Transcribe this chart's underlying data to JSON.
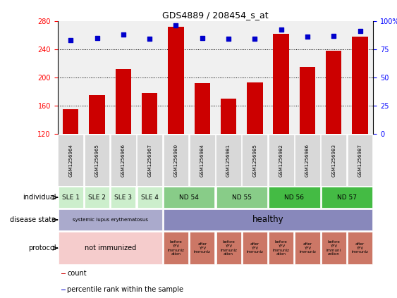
{
  "title": "GDS4889 / 208454_s_at",
  "samples": [
    "GSM1256964",
    "GSM1256965",
    "GSM1256966",
    "GSM1256967",
    "GSM1256980",
    "GSM1256984",
    "GSM1256981",
    "GSM1256985",
    "GSM1256982",
    "GSM1256986",
    "GSM1256983",
    "GSM1256987"
  ],
  "counts": [
    155,
    175,
    212,
    178,
    272,
    192,
    170,
    193,
    262,
    215,
    238,
    258
  ],
  "percentiles": [
    83,
    85,
    88,
    84,
    96,
    85,
    84,
    84,
    92,
    86,
    87,
    91
  ],
  "ylim_left": [
    120,
    280
  ],
  "ylim_right": [
    0,
    100
  ],
  "yticks_left": [
    120,
    160,
    200,
    240,
    280
  ],
  "yticks_right": [
    0,
    25,
    50,
    75,
    100
  ],
  "bar_color": "#cc0000",
  "dot_color": "#0000cc",
  "bg_color": "#f0f0f0",
  "ind_colors": [
    "#cceecc",
    "#cceecc",
    "#cceecc",
    "#cceecc",
    "#88cc88",
    "#88cc88",
    "#44bb44",
    "#44bb44"
  ],
  "ind_texts": [
    "SLE 1",
    "SLE 2",
    "SLE 3",
    "SLE 4",
    "ND 54",
    "ND 55",
    "ND 56",
    "ND 57"
  ],
  "ind_spans": [
    1,
    1,
    1,
    1,
    2,
    2,
    2,
    2
  ],
  "dis_cells": [
    {
      "col": 0,
      "span": 4,
      "color": "#aaaacc",
      "text": "systemic lupus erythematosus",
      "fs": 5.0
    },
    {
      "col": 4,
      "span": 8,
      "color": "#8888bb",
      "text": "healthy",
      "fs": 8.5
    }
  ],
  "pro_cells": [
    {
      "col": 0,
      "span": 4,
      "color": "#f5cccc",
      "text": "not immunized",
      "fs": 7.0
    },
    {
      "col": 4,
      "span": 1,
      "color": "#cc7766",
      "text": "before\nYFV\nimmuniz\nation",
      "fs": 4.0
    },
    {
      "col": 5,
      "span": 1,
      "color": "#cc7766",
      "text": "after\nYFV\nimmuniz",
      "fs": 4.0
    },
    {
      "col": 6,
      "span": 1,
      "color": "#cc7766",
      "text": "before\nYFV\nimmuniz\nation",
      "fs": 4.0
    },
    {
      "col": 7,
      "span": 1,
      "color": "#cc7766",
      "text": "after\nYFV\nimmuniz",
      "fs": 4.0
    },
    {
      "col": 8,
      "span": 1,
      "color": "#cc7766",
      "text": "before\nYFV\nimmuniz\nation",
      "fs": 4.0
    },
    {
      "col": 9,
      "span": 1,
      "color": "#cc7766",
      "text": "after\nYFV\nimmuniz",
      "fs": 4.0
    },
    {
      "col": 10,
      "span": 1,
      "color": "#cc7766",
      "text": "before\nYFV\nimmuni\nzation",
      "fs": 4.0
    },
    {
      "col": 11,
      "span": 1,
      "color": "#cc7766",
      "text": "after\nYFV\nimmuniz",
      "fs": 4.0
    }
  ],
  "legend_items": [
    {
      "color": "#cc0000",
      "label": "count"
    },
    {
      "color": "#0000cc",
      "label": "percentile rank within the sample"
    }
  ],
  "row_label_fs": 7.0,
  "sample_label_fs": 5.0
}
